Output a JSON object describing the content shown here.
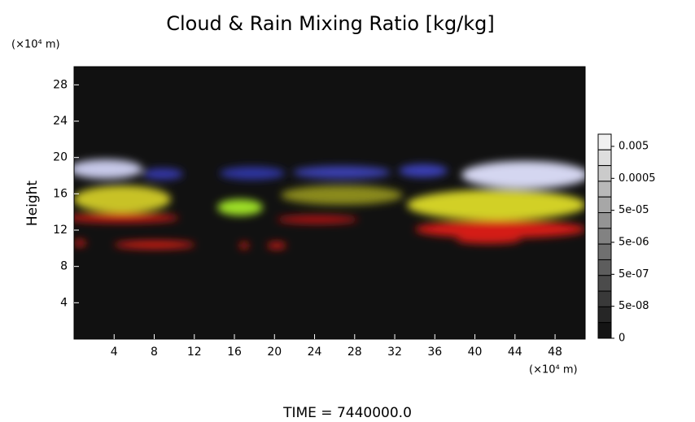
{
  "chart_data": {
    "type": "field",
    "title": "Cloud & Rain Mixing Ratio [kg/kg]",
    "y_label": "Height",
    "y_unit": "(×10⁴ m)",
    "x_unit": "(×10⁴ m)",
    "time_label": "TIME = 7440000.0",
    "xlim": [
      0,
      51
    ],
    "xticks": [
      4,
      8,
      12,
      16,
      20,
      24,
      28,
      32,
      36,
      40,
      44,
      48
    ],
    "ylim": [
      0,
      30
    ],
    "yticks": [
      4,
      8,
      12,
      16,
      20,
      24,
      28
    ],
    "grid": false,
    "colorbar_ticks": [
      0.005,
      0.0005,
      {
        "value": 5e-05,
        "label": "5e-05"
      },
      {
        "value": 5e-06,
        "label": "5e-06"
      },
      {
        "value": 5e-07,
        "label": "5e-07"
      },
      {
        "value": 5e-08,
        "label": "5e-08"
      },
      0
    ]
  }
}
